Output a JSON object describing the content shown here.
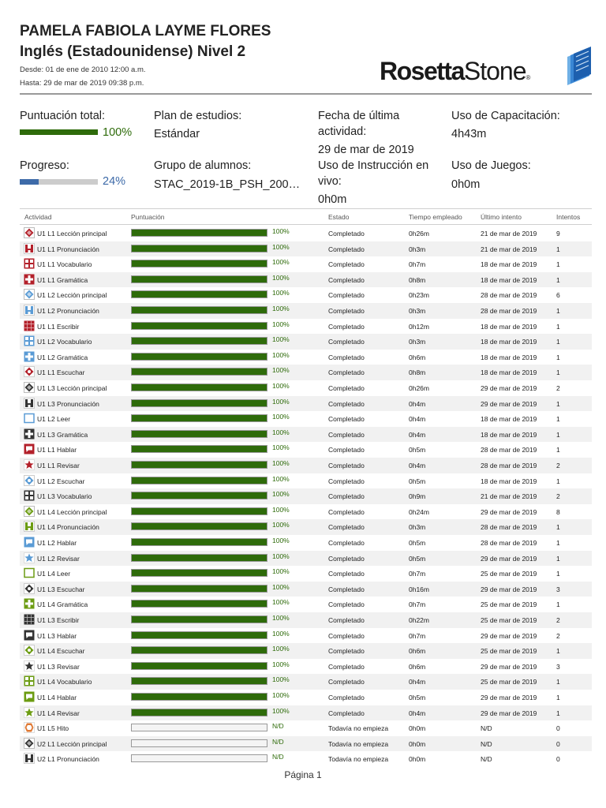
{
  "header": {
    "student_name": "PAMELA FABIOLA LAYME FLORES",
    "course": "Inglés (Estadounidense) Nivel 2",
    "date_from": "Desde: 01 de ene de 2010 12:00 a.m.",
    "date_to": "Hasta: 29 de mar de 2019 09:38 p.m.",
    "logo_bold": "Rosetta",
    "logo_regular": "Stone",
    "logo_reg_mark": "®"
  },
  "summary": {
    "total_score_label": "Puntuación total:",
    "total_score_pct": "100%",
    "total_score_value": 1.0,
    "progress_label": "Progreso:",
    "progress_pct": "24%",
    "progress_value": 0.24,
    "curriculum_label": "Plan de estudios:",
    "curriculum_value": "Estándar",
    "group_label": "Grupo de alumnos:",
    "group_value": "STAC_2019-1B_PSH_200…",
    "last_activity_label_1": "Fecha de última",
    "last_activity_label_2": "actividad:",
    "last_activity_value": "29 de mar de 2019",
    "live_label_1": "Uso de Instrucción en",
    "live_label_2": "vivo:",
    "live_value": "0h0m",
    "training_label": "Uso de Capacitación:",
    "training_value": "4h43m",
    "games_label": "Uso de Juegos:",
    "games_value": "0h0m"
  },
  "colors": {
    "score_green": "#2e6b0a",
    "progress_blue": "#3d6aa8",
    "track_gray": "#cccccc"
  },
  "table": {
    "headers": {
      "activity": "Actividad",
      "score": "Puntuación",
      "status": "Estado",
      "time": "Tiempo empleado",
      "last": "Último intento",
      "attempts": "Intentos"
    },
    "rows": [
      {
        "icon": "lesson-red-diamond-icon",
        "activity": "U1 L1 Lección principal",
        "score": "100%",
        "score_value": 1.0,
        "status": "Completado",
        "time": "0h26m",
        "last": "21 de mar de 2019",
        "attempts": "9"
      },
      {
        "icon": "pronunciation-red-icon",
        "activity": "U1 L1 Pronunciación",
        "score": "100%",
        "score_value": 1.0,
        "status": "Completado",
        "time": "0h3m",
        "last": "21 de mar de 2019",
        "attempts": "1"
      },
      {
        "icon": "vocabulary-red-icon",
        "activity": "U1 L1 Vocabulario",
        "score": "100%",
        "score_value": 1.0,
        "status": "Completado",
        "time": "0h7m",
        "last": "18 de mar de 2019",
        "attempts": "1"
      },
      {
        "icon": "grammar-red-icon",
        "activity": "U1 L1 Gramática",
        "score": "100%",
        "score_value": 1.0,
        "status": "Completado",
        "time": "0h8m",
        "last": "18 de mar de 2019",
        "attempts": "1"
      },
      {
        "icon": "lesson-blue-diamond-icon",
        "activity": "U1 L2 Lección principal",
        "score": "100%",
        "score_value": 1.0,
        "status": "Completado",
        "time": "0h23m",
        "last": "28 de mar de 2019",
        "attempts": "6"
      },
      {
        "icon": "pronunciation-blue-icon",
        "activity": "U1 L2 Pronunciación",
        "score": "100%",
        "score_value": 1.0,
        "status": "Completado",
        "time": "0h3m",
        "last": "28 de mar de 2019",
        "attempts": "1"
      },
      {
        "icon": "writing-red-icon",
        "activity": "U1 L1 Escribir",
        "score": "100%",
        "score_value": 1.0,
        "status": "Completado",
        "time": "0h12m",
        "last": "18 de mar de 2019",
        "attempts": "1"
      },
      {
        "icon": "vocabulary-blue-icon",
        "activity": "U1 L2 Vocabulario",
        "score": "100%",
        "score_value": 1.0,
        "status": "Completado",
        "time": "0h3m",
        "last": "18 de mar de 2019",
        "attempts": "1"
      },
      {
        "icon": "grammar-blue-icon",
        "activity": "U1 L2 Gramática",
        "score": "100%",
        "score_value": 1.0,
        "status": "Completado",
        "time": "0h6m",
        "last": "18 de mar de 2019",
        "attempts": "1"
      },
      {
        "icon": "listening-red-icon",
        "activity": "U1 L1 Escuchar",
        "score": "100%",
        "score_value": 1.0,
        "status": "Completado",
        "time": "0h8m",
        "last": "18 de mar de 2019",
        "attempts": "1"
      },
      {
        "icon": "lesson-dark-diamond-icon",
        "activity": "U1 L3 Lección principal",
        "score": "100%",
        "score_value": 1.0,
        "status": "Completado",
        "time": "0h26m",
        "last": "29 de mar de 2019",
        "attempts": "2"
      },
      {
        "icon": "pronunciation-dark-icon",
        "activity": "U1 L3 Pronunciación",
        "score": "100%",
        "score_value": 1.0,
        "status": "Completado",
        "time": "0h4m",
        "last": "29 de mar de 2019",
        "attempts": "1"
      },
      {
        "icon": "reading-blue-icon",
        "activity": "U1 L2 Leer",
        "score": "100%",
        "score_value": 1.0,
        "status": "Completado",
        "time": "0h4m",
        "last": "18 de mar de 2019",
        "attempts": "1"
      },
      {
        "icon": "grammar-dark-icon",
        "activity": "U1 L3 Gramática",
        "score": "100%",
        "score_value": 1.0,
        "status": "Completado",
        "time": "0h4m",
        "last": "18 de mar de 2019",
        "attempts": "1"
      },
      {
        "icon": "speaking-red-icon",
        "activity": "U1 L1 Hablar",
        "score": "100%",
        "score_value": 1.0,
        "status": "Completado",
        "time": "0h5m",
        "last": "28 de mar de 2019",
        "attempts": "1"
      },
      {
        "icon": "review-red-star-icon",
        "activity": "U1 L1 Revisar",
        "score": "100%",
        "score_value": 1.0,
        "status": "Completado",
        "time": "0h4m",
        "last": "28 de mar de 2019",
        "attempts": "2"
      },
      {
        "icon": "listening-blue-icon",
        "activity": "U1 L2 Escuchar",
        "score": "100%",
        "score_value": 1.0,
        "status": "Completado",
        "time": "0h5m",
        "last": "18 de mar de 2019",
        "attempts": "1"
      },
      {
        "icon": "vocabulary-dark-icon",
        "activity": "U1 L3 Vocabulario",
        "score": "100%",
        "score_value": 1.0,
        "status": "Completado",
        "time": "0h9m",
        "last": "21 de mar de 2019",
        "attempts": "2"
      },
      {
        "icon": "lesson-green-diamond-icon",
        "activity": "U1 L4 Lección principal",
        "score": "100%",
        "score_value": 1.0,
        "status": "Completado",
        "time": "0h24m",
        "last": "29 de mar de 2019",
        "attempts": "8"
      },
      {
        "icon": "pronunciation-green-icon",
        "activity": "U1 L4 Pronunciación",
        "score": "100%",
        "score_value": 1.0,
        "status": "Completado",
        "time": "0h3m",
        "last": "28 de mar de 2019",
        "attempts": "1"
      },
      {
        "icon": "speaking-blue-icon",
        "activity": "U1 L2 Hablar",
        "score": "100%",
        "score_value": 1.0,
        "status": "Completado",
        "time": "0h5m",
        "last": "28 de mar de 2019",
        "attempts": "1"
      },
      {
        "icon": "review-blue-star-icon",
        "activity": "U1 L2 Revisar",
        "score": "100%",
        "score_value": 1.0,
        "status": "Completado",
        "time": "0h5m",
        "last": "29 de mar de 2019",
        "attempts": "1"
      },
      {
        "icon": "reading-green-icon",
        "activity": "U1 L4 Leer",
        "score": "100%",
        "score_value": 1.0,
        "status": "Completado",
        "time": "0h7m",
        "last": "25 de mar de 2019",
        "attempts": "1"
      },
      {
        "icon": "listening-dark-icon",
        "activity": "U1 L3 Escuchar",
        "score": "100%",
        "score_value": 1.0,
        "status": "Completado",
        "time": "0h16m",
        "last": "29 de mar de 2019",
        "attempts": "3"
      },
      {
        "icon": "grammar-green-icon",
        "activity": "U1 L4 Gramática",
        "score": "100%",
        "score_value": 1.0,
        "status": "Completado",
        "time": "0h7m",
        "last": "25 de mar de 2019",
        "attempts": "1"
      },
      {
        "icon": "writing-dark-icon",
        "activity": "U1 L3 Escribir",
        "score": "100%",
        "score_value": 1.0,
        "status": "Completado",
        "time": "0h22m",
        "last": "25 de mar de 2019",
        "attempts": "2"
      },
      {
        "icon": "speaking-dark-icon",
        "activity": "U1 L3 Hablar",
        "score": "100%",
        "score_value": 1.0,
        "status": "Completado",
        "time": "0h7m",
        "last": "29 de mar de 2019",
        "attempts": "2"
      },
      {
        "icon": "listening-green-icon",
        "activity": "U1 L4 Escuchar",
        "score": "100%",
        "score_value": 1.0,
        "status": "Completado",
        "time": "0h6m",
        "last": "25 de mar de 2019",
        "attempts": "1"
      },
      {
        "icon": "review-dark-star-icon",
        "activity": "U1 L3 Revisar",
        "score": "100%",
        "score_value": 1.0,
        "status": "Completado",
        "time": "0h6m",
        "last": "29 de mar de 2019",
        "attempts": "3"
      },
      {
        "icon": "vocabulary-green-icon",
        "activity": "U1 L4 Vocabulario",
        "score": "100%",
        "score_value": 1.0,
        "status": "Completado",
        "time": "0h4m",
        "last": "25 de mar de 2019",
        "attempts": "1"
      },
      {
        "icon": "speaking-green-icon",
        "activity": "U1 L4 Hablar",
        "score": "100%",
        "score_value": 1.0,
        "status": "Completado",
        "time": "0h5m",
        "last": "29 de mar de 2019",
        "attempts": "1"
      },
      {
        "icon": "review-green-star-icon",
        "activity": "U1 L4 Revisar",
        "score": "100%",
        "score_value": 1.0,
        "status": "Completado",
        "time": "0h4m",
        "last": "29 de mar de 2019",
        "attempts": "1"
      },
      {
        "icon": "milestone-orange-icon",
        "activity": "U1 L5 Hito",
        "score": "N/D",
        "score_value": 0,
        "status": "Todavía no empieza",
        "time": "0h0m",
        "last": "N/D",
        "attempts": "0"
      },
      {
        "icon": "lesson-dark-diamond-icon",
        "activity": "U2 L1 Lección principal",
        "score": "N/D",
        "score_value": 0,
        "status": "Todavía no empieza",
        "time": "0h0m",
        "last": "N/D",
        "attempts": "0"
      },
      {
        "icon": "pronunciation-dark-icon",
        "activity": "U2 L1 Pronunciación",
        "score": "N/D",
        "score_value": 0,
        "status": "Todavía no empieza",
        "time": "0h0m",
        "last": "N/D",
        "attempts": "0"
      }
    ]
  },
  "footer": {
    "page_label": "Página 1"
  }
}
